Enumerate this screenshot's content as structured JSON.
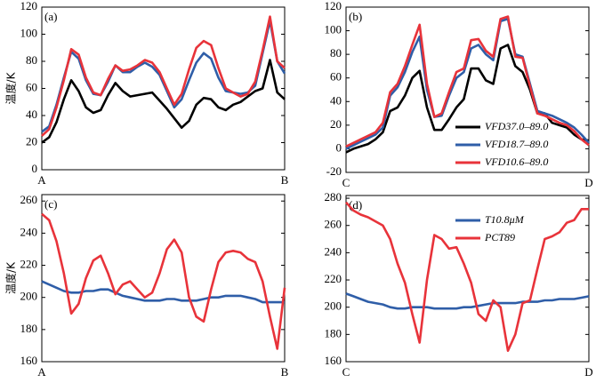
{
  "chart_data": [
    {
      "type": "line",
      "panel_label": "(a)",
      "y_label": "温度/K",
      "x": [
        0,
        1,
        2,
        3,
        4,
        5,
        6,
        7,
        8,
        9,
        10,
        11,
        12,
        13,
        14,
        15,
        16,
        17,
        18,
        19,
        20,
        21,
        22,
        23,
        24,
        25,
        26,
        27,
        28,
        29,
        30,
        31,
        32,
        33
      ],
      "xlim": [
        0,
        33
      ],
      "xticks": [
        {
          "value": 0,
          "label": "A"
        },
        {
          "value": 33,
          "label": "B"
        }
      ],
      "ylim": [
        0,
        120
      ],
      "yticks": [
        0,
        20,
        40,
        60,
        80,
        100,
        120
      ],
      "series": [
        {
          "name": null,
          "color": "#000000",
          "values": [
            20,
            24,
            35,
            52,
            66,
            58,
            46,
            42,
            44,
            55,
            64,
            58,
            54,
            55,
            56,
            57,
            51,
            45,
            38,
            31,
            36,
            48,
            53,
            52,
            46,
            44,
            48,
            50,
            54,
            58,
            60,
            81,
            57,
            52
          ]
        },
        {
          "name": null,
          "color": "#2f5ea8",
          "values": [
            28,
            32,
            48,
            68,
            87,
            82,
            66,
            56,
            55,
            65,
            77,
            72,
            72,
            76,
            79,
            76,
            70,
            58,
            46,
            52,
            66,
            79,
            86,
            82,
            68,
            58,
            57,
            56,
            57,
            62,
            86,
            110,
            80,
            71
          ]
        },
        {
          "name": null,
          "color": "#e8333a",
          "values": [
            25,
            30,
            46,
            66,
            89,
            85,
            68,
            57,
            55,
            67,
            77,
            73,
            74,
            77,
            81,
            79,
            72,
            60,
            48,
            56,
            74,
            90,
            95,
            92,
            75,
            60,
            57,
            54,
            56,
            65,
            88,
            113,
            80,
            75
          ]
        }
      ]
    },
    {
      "type": "line",
      "panel_label": "(b)",
      "legend": "lower right",
      "x": [
        0,
        1,
        2,
        3,
        4,
        5,
        6,
        7,
        8,
        9,
        10,
        11,
        12,
        13,
        14,
        15,
        16,
        17,
        18,
        19,
        20,
        21,
        22,
        23,
        24,
        25,
        26,
        27,
        28,
        29,
        30,
        31,
        32,
        33
      ],
      "xlim": [
        0,
        33
      ],
      "xticks": [
        {
          "value": 0,
          "label": "C"
        },
        {
          "value": 33,
          "label": "D"
        }
      ],
      "ylim": [
        -20,
        120
      ],
      "yticks": [
        -20,
        0,
        20,
        40,
        60,
        80,
        100,
        120
      ],
      "series": [
        {
          "name": "VFD37.0–89.0",
          "color": "#000000",
          "values": [
            -3,
            0,
            2,
            4,
            8,
            14,
            32,
            35,
            45,
            60,
            66,
            35,
            16,
            16,
            25,
            35,
            42,
            68,
            68,
            58,
            55,
            85,
            88,
            70,
            65,
            50,
            30,
            30,
            22,
            20,
            18,
            12,
            8,
            7
          ]
        },
        {
          "name": "VFD18.7–89.0",
          "color": "#2f5ea8",
          "values": [
            0,
            3,
            6,
            9,
            12,
            18,
            45,
            52,
            65,
            82,
            95,
            50,
            27,
            28,
            45,
            60,
            65,
            85,
            88,
            80,
            75,
            108,
            110,
            80,
            78,
            55,
            32,
            30,
            28,
            25,
            22,
            18,
            12,
            5
          ]
        },
        {
          "name": "VFD10.6–89.0",
          "color": "#e8333a",
          "values": [
            2,
            5,
            8,
            11,
            14,
            22,
            48,
            55,
            70,
            88,
            105,
            55,
            27,
            30,
            48,
            65,
            68,
            92,
            93,
            83,
            78,
            110,
            112,
            78,
            77,
            53,
            30,
            28,
            25,
            22,
            20,
            15,
            8,
            3
          ]
        }
      ]
    },
    {
      "type": "line",
      "panel_label": "(c)",
      "y_label": "温度/K",
      "x": [
        0,
        1,
        2,
        3,
        4,
        5,
        6,
        7,
        8,
        9,
        10,
        11,
        12,
        13,
        14,
        15,
        16,
        17,
        18,
        19,
        20,
        21,
        22,
        23,
        24,
        25,
        26,
        27,
        28,
        29,
        30,
        31,
        32,
        33
      ],
      "xlim": [
        0,
        33
      ],
      "xticks": [
        {
          "value": 0,
          "label": "A"
        },
        {
          "value": 33,
          "label": "B"
        }
      ],
      "ylim": [
        160,
        264
      ],
      "yticks": [
        160,
        180,
        200,
        220,
        240,
        260
      ],
      "series": [
        {
          "name": null,
          "color": "#2f5ea8",
          "values": [
            210,
            208,
            206,
            204,
            203,
            203,
            204,
            204,
            205,
            205,
            203,
            201,
            200,
            199,
            198,
            198,
            198,
            199,
            199,
            198,
            198,
            198,
            199,
            200,
            200,
            201,
            201,
            201,
            200,
            199,
            197,
            197,
            197,
            197
          ]
        },
        {
          "name": null,
          "color": "#e8333a",
          "values": [
            252,
            248,
            235,
            215,
            190,
            196,
            212,
            223,
            226,
            215,
            202,
            208,
            210,
            205,
            200,
            203,
            215,
            230,
            236,
            228,
            200,
            188,
            185,
            205,
            222,
            228,
            229,
            228,
            224,
            222,
            210,
            188,
            168,
            206
          ]
        }
      ]
    },
    {
      "type": "line",
      "panel_label": "(d)",
      "legend": "upper right",
      "x": [
        0,
        1,
        2,
        3,
        4,
        5,
        6,
        7,
        8,
        9,
        10,
        11,
        12,
        13,
        14,
        15,
        16,
        17,
        18,
        19,
        20,
        21,
        22,
        23,
        24,
        25,
        26,
        27,
        28,
        29,
        30,
        31,
        32,
        33
      ],
      "xlim": [
        0,
        33
      ],
      "xticks": [
        {
          "value": 0,
          "label": "C"
        },
        {
          "value": 33,
          "label": "D"
        }
      ],
      "ylim": [
        160,
        282
      ],
      "yticks": [
        160,
        180,
        200,
        220,
        240,
        260,
        280
      ],
      "series": [
        {
          "name": "T10.8μM",
          "color": "#2f5ea8",
          "values": [
            210,
            208,
            206,
            204,
            203,
            202,
            200,
            199,
            199,
            200,
            200,
            200,
            199,
            199,
            199,
            199,
            200,
            200,
            201,
            202,
            203,
            203,
            203,
            203,
            204,
            204,
            204,
            205,
            205,
            206,
            206,
            206,
            207,
            208
          ]
        },
        {
          "name": "PCT89",
          "color": "#e8333a",
          "values": [
            277,
            271,
            268,
            266,
            263,
            260,
            250,
            232,
            218,
            195,
            174,
            220,
            253,
            250,
            243,
            244,
            232,
            218,
            195,
            190,
            205,
            200,
            168,
            180,
            203,
            205,
            228,
            250,
            252,
            255,
            262,
            264,
            272,
            272
          ]
        }
      ]
    }
  ]
}
